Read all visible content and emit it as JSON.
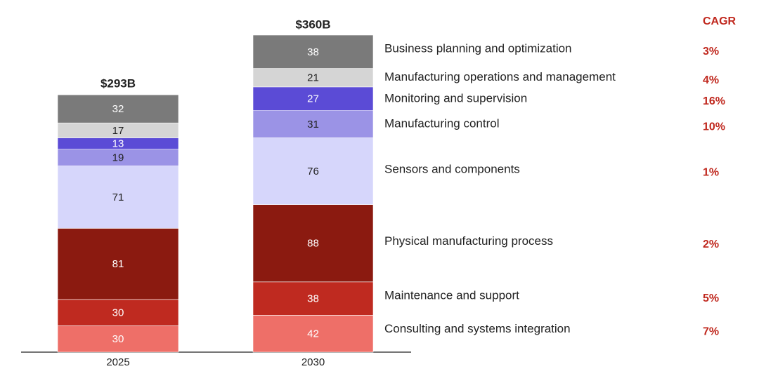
{
  "chart_data": {
    "type": "stacked_bar",
    "categories": [
      "2025",
      "2030"
    ],
    "totals": {
      "values": [
        293,
        360
      ],
      "value_labels": [
        "$293B",
        "$360B"
      ]
    },
    "cagr_title": "CAGR",
    "series": [
      {
        "name": "Consulting and systems integration",
        "color": "#ee6f68",
        "values": [
          30,
          42
        ],
        "cagr": "7%"
      },
      {
        "name": "Maintenance and support",
        "color": "#bf2a20",
        "values": [
          30,
          38
        ],
        "cagr": "5%"
      },
      {
        "name": "Physical manufacturing process",
        "color": "#8b1a10",
        "values": [
          81,
          88
        ],
        "cagr": "2%"
      },
      {
        "name": "Sensors and components",
        "color": "#d6d6fb",
        "values": [
          71,
          76
        ],
        "cagr": "1%"
      },
      {
        "name": "Manufacturing control",
        "color": "#9b93e6",
        "values": [
          19,
          31
        ],
        "cagr": "10%"
      },
      {
        "name": "Monitoring and supervision",
        "color": "#5b4bd6",
        "values": [
          13,
          27
        ],
        "cagr": "16%"
      },
      {
        "name": "Manufacturing operations and management",
        "color": "#d5d5d5",
        "values": [
          17,
          21
        ],
        "cagr": "4%"
      },
      {
        "name": "Business planning and optimization",
        "color": "#7a7a7a",
        "values": [
          32,
          38
        ],
        "cagr": "3%"
      }
    ]
  }
}
